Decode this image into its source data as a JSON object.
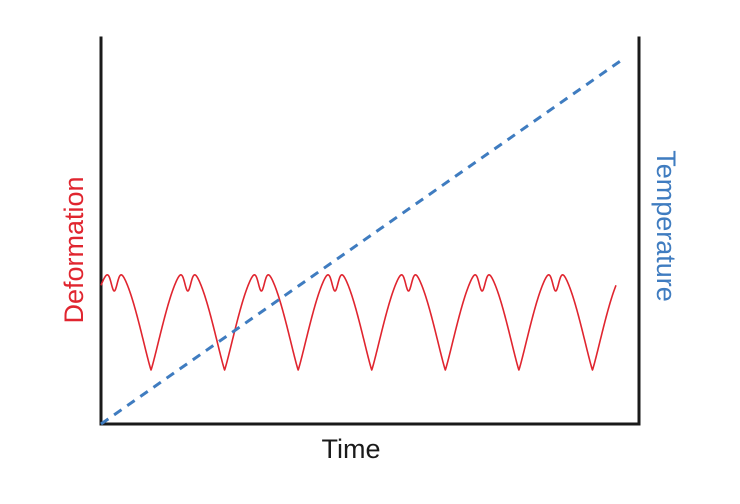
{
  "chart_data": {
    "type": "line",
    "title": "",
    "xlabel": "Time",
    "ylabel_left": "Deformation",
    "ylabel_right": "Temperature",
    "axis_ticks": "none",
    "grid": false,
    "x": [
      0,
      1
    ],
    "series": [
      {
        "name": "Deformation",
        "axis": "left",
        "style": "solid",
        "color": "#e0252f",
        "shape": "periodic oscillation, double-peaked crests, 7 cycles over the time span",
        "cycles": 7,
        "baseline": 0.395,
        "amplitude": 0.27,
        "range": [
          0.14,
          0.42
        ]
      },
      {
        "name": "Temperature",
        "axis": "right",
        "style": "dashed",
        "color": "#3f7cc0",
        "shape": "linear increase",
        "values": [
          0.0,
          0.99
        ]
      }
    ],
    "ylim": [
      0,
      1
    ]
  },
  "colors": {
    "axis": "#1a1a1a",
    "deformation": "#e0252f",
    "temperature": "#3f7cc0"
  }
}
